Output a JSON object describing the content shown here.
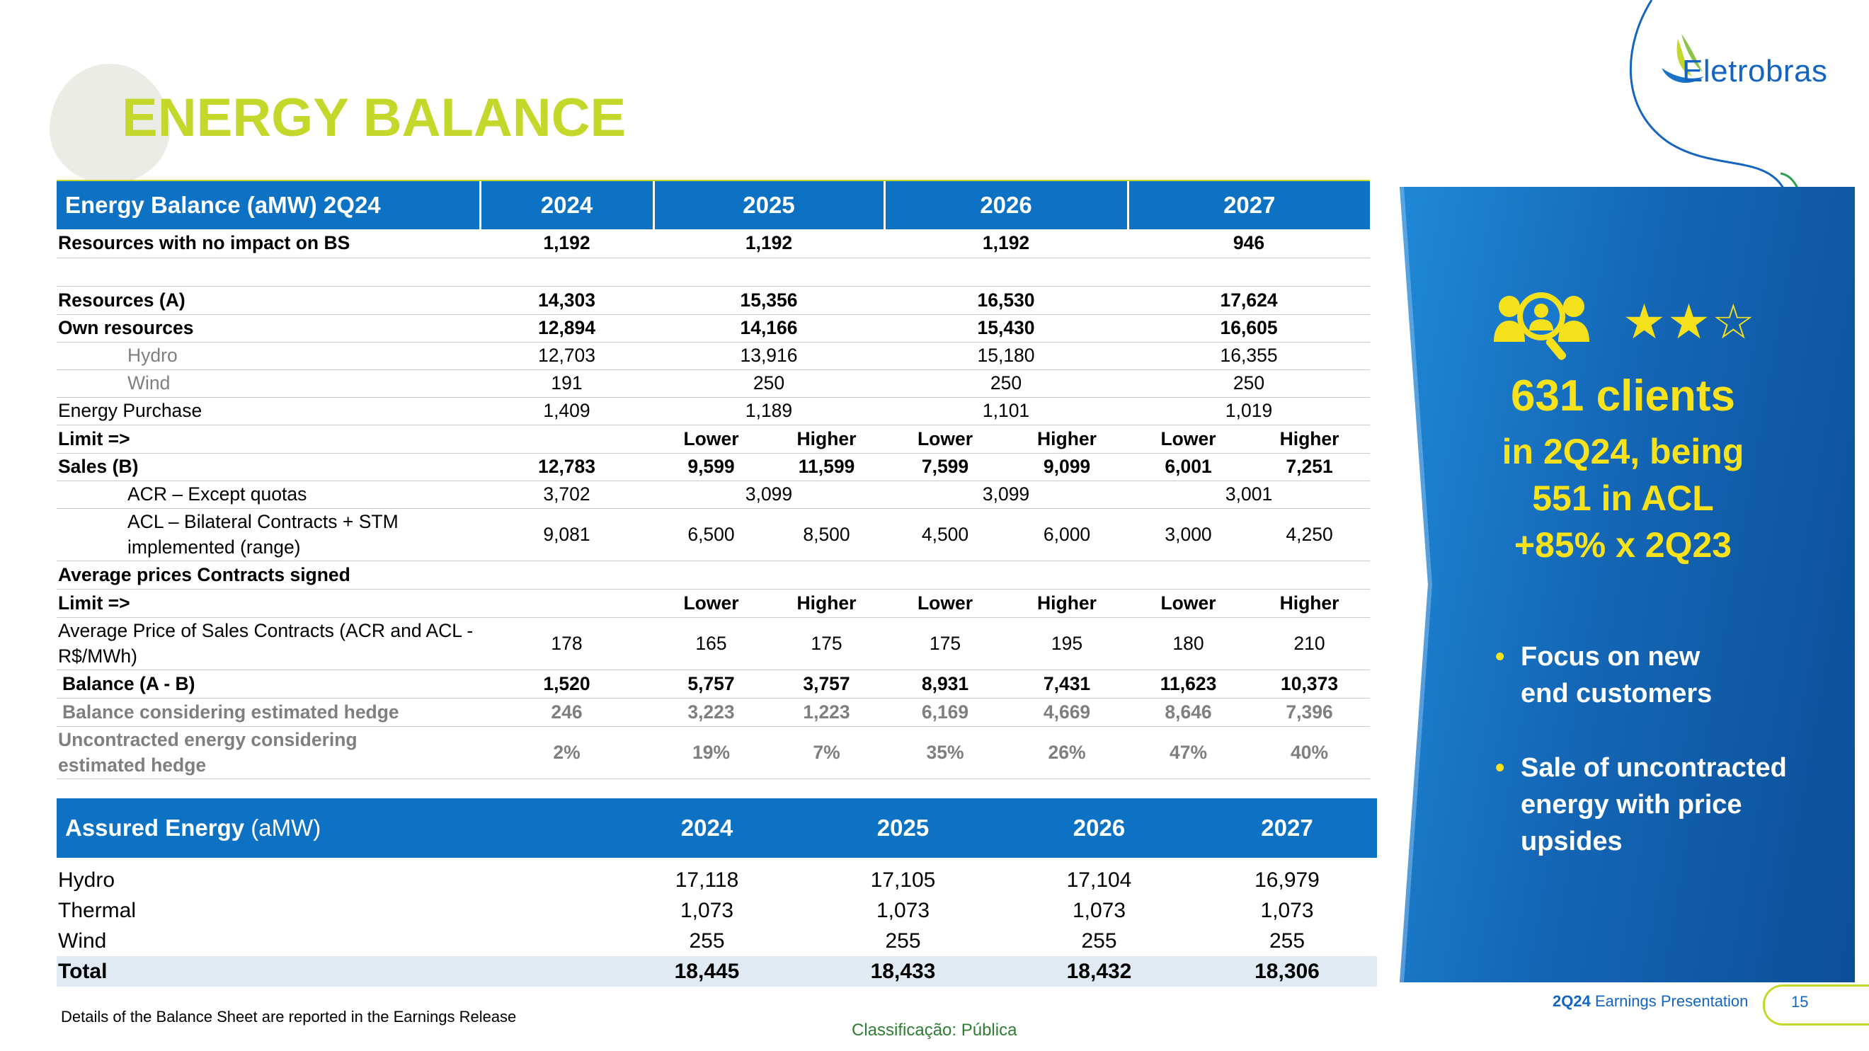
{
  "title": "ENERGY BALANCE",
  "brand": {
    "name": "Eletrobras"
  },
  "balance_table": {
    "header": [
      "Energy Balance (aMW) 2Q24",
      "2024",
      "2025",
      "2026",
      "2027"
    ],
    "rows": {
      "no_impact": [
        "Resources with no impact on BS",
        "1,192",
        "1,192",
        "1,192",
        "946"
      ],
      "resources": [
        "Resources (A)",
        "14,303",
        "15,356",
        "16,530",
        "17,624"
      ],
      "own": [
        "Own resources",
        "12,894",
        "14,166",
        "15,430",
        "16,605"
      ],
      "hydro": [
        "Hydro",
        "12,703",
        "13,916",
        "15,180",
        "16,355"
      ],
      "wind": [
        "Wind",
        "191",
        "250",
        "250",
        "250"
      ],
      "purchase": [
        "Energy Purchase",
        "1,409",
        "1,189",
        "1,101",
        "1,019"
      ],
      "limit1": [
        "Limit =>",
        "",
        "Lower",
        "Higher",
        "Lower",
        "Higher",
        "Lower",
        "Higher"
      ],
      "sales": [
        "Sales (B)",
        "12,783",
        "9,599",
        "11,599",
        "7,599",
        "9,099",
        "6,001",
        "7,251"
      ],
      "acr": [
        "ACR – Except quotas",
        "3,702",
        "3,099",
        "3,099",
        "3,001"
      ],
      "acl": [
        "ACL – Bilateral Contracts + STM implemented (range)",
        "9,081",
        "6,500",
        "8,500",
        "4,500",
        "6,000",
        "3,000",
        "4,250"
      ],
      "avg_title": [
        "Average prices Contracts signed"
      ],
      "limit2": [
        "Limit =>",
        "",
        "Lower",
        "Higher",
        "Lower",
        "Higher",
        "Lower",
        "Higher"
      ],
      "avg_price": [
        "Average Price of Sales Contracts (ACR and ACL - R$/MWh)",
        "178",
        "165",
        "175",
        "175",
        "195",
        "180",
        "210"
      ],
      "balance": [
        "Balance (A - B)",
        "1,520",
        "5,757",
        "3,757",
        "8,931",
        "7,431",
        "11,623",
        "10,373"
      ],
      "hedge": [
        "Balance considering estimated hedge",
        "246",
        "3,223",
        "1,223",
        "6,169",
        "4,669",
        "8,646",
        "7,396"
      ],
      "uncontracted": [
        "Uncontracted energy considering estimated hedge",
        "2%",
        "19%",
        "7%",
        "35%",
        "26%",
        "47%",
        "40%"
      ]
    }
  },
  "assured_table": {
    "title": "Assured Energy",
    "unit": "(aMW)",
    "years": [
      "2024",
      "2025",
      "2026",
      "2027"
    ],
    "rows": [
      [
        "Hydro",
        "17,118",
        "17,105",
        "17,104",
        "16,979"
      ],
      [
        "Thermal",
        "1,073",
        "1,073",
        "1,073",
        "1,073"
      ],
      [
        "Wind",
        "255",
        "255",
        "255",
        "255"
      ],
      [
        "Total",
        "18,445",
        "18,433",
        "18,432",
        "18,306"
      ]
    ]
  },
  "panel": {
    "stars": "★★☆",
    "clients_count": "631 clients",
    "lines": [
      "in 2Q24, being",
      "551 in ACL",
      "+85% x 2Q23"
    ],
    "bullets": [
      [
        "Focus on new",
        "end customers"
      ],
      [
        "Sale of uncontracted",
        "energy with price",
        "upsides"
      ]
    ],
    "bullet_char": "•"
  },
  "footnote": "Details of the Balance Sheet are reported in the Earnings Release",
  "classification": "Classificação: Pública",
  "footer": {
    "label_bold": "2Q24",
    "label_rest": " Earnings Presentation",
    "page": "15"
  },
  "colors": {
    "accent_green": "#c3d82a",
    "blue": "#0d72c4",
    "yellow": "#f7e21c"
  }
}
